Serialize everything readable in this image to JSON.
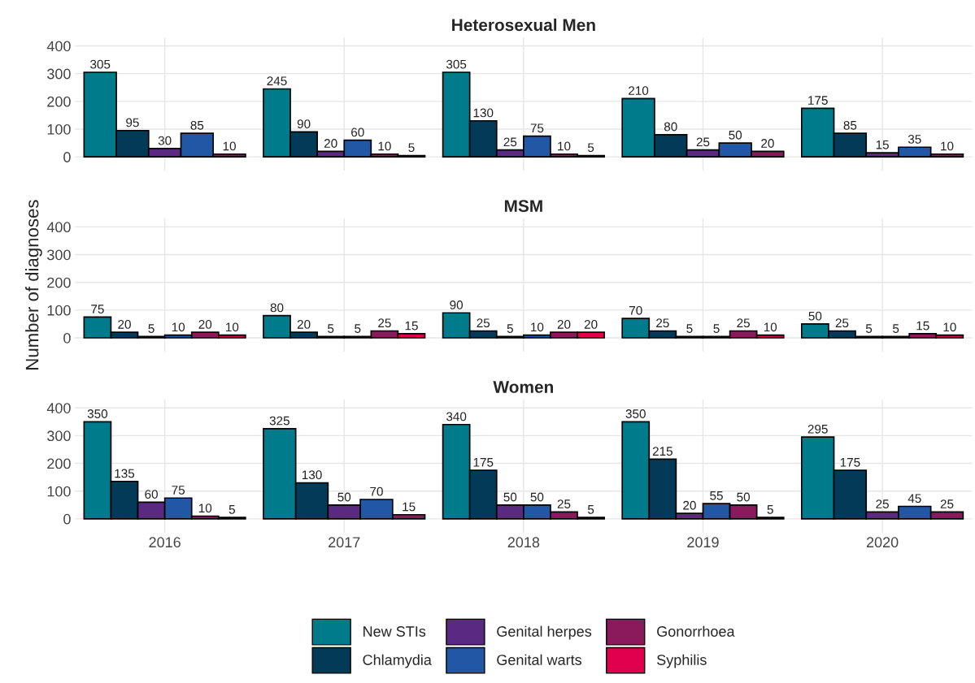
{
  "chart_data": [
    {
      "type": "bar",
      "title": "Heterosexual Men",
      "categories": [
        "2016",
        "2017",
        "2018",
        "2019",
        "2020"
      ],
      "ylim": [
        -50,
        430
      ],
      "yticks": [
        0,
        100,
        200,
        300,
        400
      ],
      "grid": true,
      "tick_labels": "y",
      "series": [
        {
          "color": "#007b8c",
          "values": [
            305,
            245,
            305,
            210,
            175
          ],
          "value_labels": [
            "305",
            "245",
            "305",
            "210",
            "175"
          ]
        },
        {
          "color": "#023a58",
          "values": [
            95,
            90,
            130,
            80,
            85
          ],
          "value_labels": [
            "95",
            "90",
            "130",
            "80",
            "85"
          ]
        },
        {
          "color": "#5a2a82",
          "values": [
            30,
            20,
            25,
            25,
            15
          ],
          "value_labels": [
            "30",
            "20",
            "25",
            "25",
            "15"
          ]
        },
        {
          "color": "#2257a6",
          "values": [
            85,
            60,
            75,
            50,
            35
          ],
          "value_labels": [
            "85",
            "60",
            "75",
            "50",
            "35"
          ]
        },
        {
          "color": "#8b1a5c",
          "values": [
            10,
            10,
            10,
            20,
            10
          ],
          "value_labels": [
            "10",
            "10",
            "10",
            "20",
            "10"
          ]
        },
        {
          "color": "#e0004d",
          "values": [
            null,
            5,
            5,
            null,
            null
          ],
          "value_labels": [
            null,
            "5",
            "5",
            null,
            null
          ]
        }
      ]
    },
    {
      "type": "bar",
      "title": "MSM",
      "ylabel": "Number of diagnoses",
      "categories": [
        "2016",
        "2017",
        "2018",
        "2019",
        "2020"
      ],
      "ylim": [
        -50,
        430
      ],
      "yticks": [
        0,
        100,
        200,
        300,
        400
      ],
      "grid": true,
      "tick_labels": "y",
      "series": [
        {
          "color": "#007b8c",
          "values": [
            75,
            80,
            90,
            70,
            50
          ],
          "value_labels": [
            "75",
            "80",
            "90",
            "70",
            "50"
          ]
        },
        {
          "color": "#023a58",
          "values": [
            20,
            20,
            25,
            25,
            25
          ],
          "value_labels": [
            "20",
            "20",
            "25",
            "25",
            "25"
          ]
        },
        {
          "color": "#5a2a82",
          "values": [
            5,
            5,
            5,
            5,
            5
          ],
          "value_labels": [
            "5",
            "5",
            "5",
            "5",
            "5"
          ]
        },
        {
          "color": "#2257a6",
          "values": [
            10,
            5,
            10,
            5,
            5
          ],
          "value_labels": [
            "10",
            "5",
            "10",
            "5",
            "5"
          ]
        },
        {
          "color": "#8b1a5c",
          "values": [
            20,
            25,
            20,
            25,
            15
          ],
          "value_labels": [
            "20",
            "25",
            "20",
            "25",
            "15"
          ]
        },
        {
          "color": "#e0004d",
          "values": [
            10,
            15,
            20,
            10,
            10
          ],
          "value_labels": [
            "10",
            "15",
            "20",
            "10",
            "10"
          ]
        }
      ]
    },
    {
      "type": "bar",
      "title": "Women",
      "categories": [
        "2016",
        "2017",
        "2018",
        "2019",
        "2020"
      ],
      "ylim": [
        -50,
        430
      ],
      "yticks": [
        0,
        100,
        200,
        300,
        400
      ],
      "grid": true,
      "legend": "bottom",
      "series": [
        {
          "name": "New STIs",
          "color": "#007b8c",
          "values": [
            350,
            325,
            340,
            350,
            295
          ],
          "value_labels": [
            "350",
            "325",
            "340",
            "350",
            "295"
          ]
        },
        {
          "name": "Chlamydia",
          "color": "#023a58",
          "values": [
            135,
            130,
            175,
            215,
            175
          ],
          "value_labels": [
            "135",
            "130",
            "175",
            "215",
            "175"
          ]
        },
        {
          "name": "Genital herpes",
          "color": "#5a2a82",
          "values": [
            60,
            50,
            50,
            20,
            25
          ],
          "value_labels": [
            "60",
            "50",
            "50",
            "20",
            "25"
          ]
        },
        {
          "name": "Genital warts",
          "color": "#2257a6",
          "values": [
            75,
            70,
            50,
            55,
            45
          ],
          "value_labels": [
            "75",
            "70",
            "50",
            "55",
            "45"
          ]
        },
        {
          "name": "Gonorrhoea",
          "color": "#8b1a5c",
          "values": [
            10,
            15,
            25,
            50,
            25
          ],
          "value_labels": [
            "10",
            "15",
            "25",
            "50",
            "25"
          ]
        },
        {
          "name": "Syphilis",
          "color": "#e0004d",
          "values": [
            5,
            null,
            5,
            5,
            null
          ],
          "value_labels": [
            "5",
            null,
            "5",
            "5",
            null
          ]
        }
      ]
    }
  ]
}
